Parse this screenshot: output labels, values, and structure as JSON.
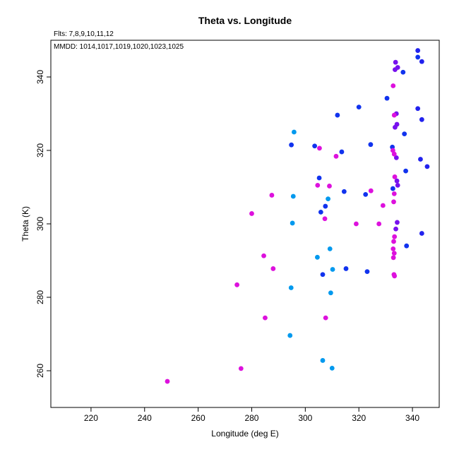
{
  "chart_data": {
    "type": "scatter",
    "title": "Theta vs. Longitude",
    "subtitle": "Flts: 7,8,9,10,11,12",
    "annotation": "MMDD: 1014,1017,1019,1020,1023,1025",
    "xlabel": "Longitude (deg E)",
    "ylabel": "Theta (K)",
    "xlim": [
      205,
      350
    ],
    "ylim": [
      250,
      350
    ],
    "xticks": [
      220,
      240,
      260,
      280,
      300,
      320,
      340
    ],
    "yticks": [
      260,
      280,
      300,
      320,
      340
    ],
    "grid": false,
    "legend": "none",
    "series": [
      {
        "color": "#1133ee",
        "points": [
          [
            294.8,
            321.5
          ],
          [
            303.5,
            321.2
          ],
          [
            305.2,
            312.5
          ],
          [
            305.8,
            303.2
          ],
          [
            306.5,
            286.2
          ],
          [
            307.5,
            304.8
          ],
          [
            312.0,
            329.6
          ],
          [
            313.6,
            319.6
          ],
          [
            314.5,
            308.8
          ],
          [
            315.2,
            287.8
          ],
          [
            320.0,
            331.8
          ],
          [
            322.5,
            308.0
          ],
          [
            323.1,
            287.0
          ],
          [
            324.4,
            321.6
          ],
          [
            330.5,
            334.2
          ],
          [
            332.5,
            320.9
          ],
          [
            332.7,
            309.6
          ],
          [
            337.0,
            324.5
          ],
          [
            337.5,
            314.4
          ],
          [
            337.8,
            294.0
          ],
          [
            336.5,
            341.3
          ],
          [
            342.0,
            345.4
          ]
        ]
      },
      {
        "color": "#0099ee",
        "points": [
          [
            295.8,
            325.0
          ],
          [
            295.5,
            307.5
          ],
          [
            295.2,
            300.2
          ],
          [
            294.7,
            282.6
          ],
          [
            294.3,
            269.6
          ],
          [
            304.5,
            290.9
          ],
          [
            306.5,
            262.8
          ],
          [
            308.5,
            306.8
          ],
          [
            309.2,
            293.2
          ],
          [
            309.5,
            281.2
          ],
          [
            310.2,
            287.6
          ],
          [
            310.0,
            260.7
          ]
        ]
      },
      {
        "color": "#2222ee",
        "points": [
          [
            342.0,
            347.2
          ],
          [
            343.5,
            344.2
          ],
          [
            342.0,
            331.4
          ],
          [
            343.5,
            328.4
          ],
          [
            343.0,
            317.6
          ],
          [
            345.5,
            315.6
          ],
          [
            343.5,
            297.4
          ]
        ]
      },
      {
        "color": "#7711ee",
        "points": [
          [
            333.7,
            344.0
          ],
          [
            333.5,
            342.0
          ],
          [
            334.5,
            342.6
          ],
          [
            334.0,
            330.0
          ],
          [
            334.2,
            327.1
          ],
          [
            333.5,
            326.3
          ],
          [
            334.0,
            318.0
          ],
          [
            334.2,
            311.7
          ],
          [
            334.5,
            310.5
          ],
          [
            334.3,
            300.4
          ],
          [
            333.8,
            298.6
          ]
        ]
      },
      {
        "color": "#dd11dd",
        "points": [
          [
            248.5,
            257.1
          ],
          [
            274.5,
            283.4
          ],
          [
            276.0,
            260.6
          ],
          [
            284.5,
            291.3
          ],
          [
            285.0,
            274.4
          ],
          [
            280.0,
            302.8
          ],
          [
            287.5,
            307.8
          ],
          [
            288.0,
            287.8
          ],
          [
            305.3,
            320.6
          ],
          [
            304.6,
            310.5
          ],
          [
            307.3,
            301.4
          ],
          [
            307.6,
            274.4
          ],
          [
            309.0,
            310.3
          ],
          [
            311.5,
            318.4
          ],
          [
            319.0,
            300.0
          ],
          [
            324.5,
            309.0
          ],
          [
            327.5,
            300.0
          ],
          [
            329.0,
            305.0
          ],
          [
            332.8,
            337.6
          ],
          [
            333.2,
            329.6
          ],
          [
            332.7,
            320.0
          ],
          [
            333.2,
            319.0
          ],
          [
            333.4,
            312.8
          ],
          [
            333.2,
            308.2
          ],
          [
            333.0,
            306.0
          ],
          [
            333.3,
            296.5
          ],
          [
            333.0,
            295.2
          ],
          [
            332.8,
            293.2
          ],
          [
            333.2,
            292.0
          ],
          [
            332.9,
            290.8
          ],
          [
            333.1,
            286.2
          ],
          [
            333.3,
            285.8
          ]
        ]
      }
    ]
  }
}
